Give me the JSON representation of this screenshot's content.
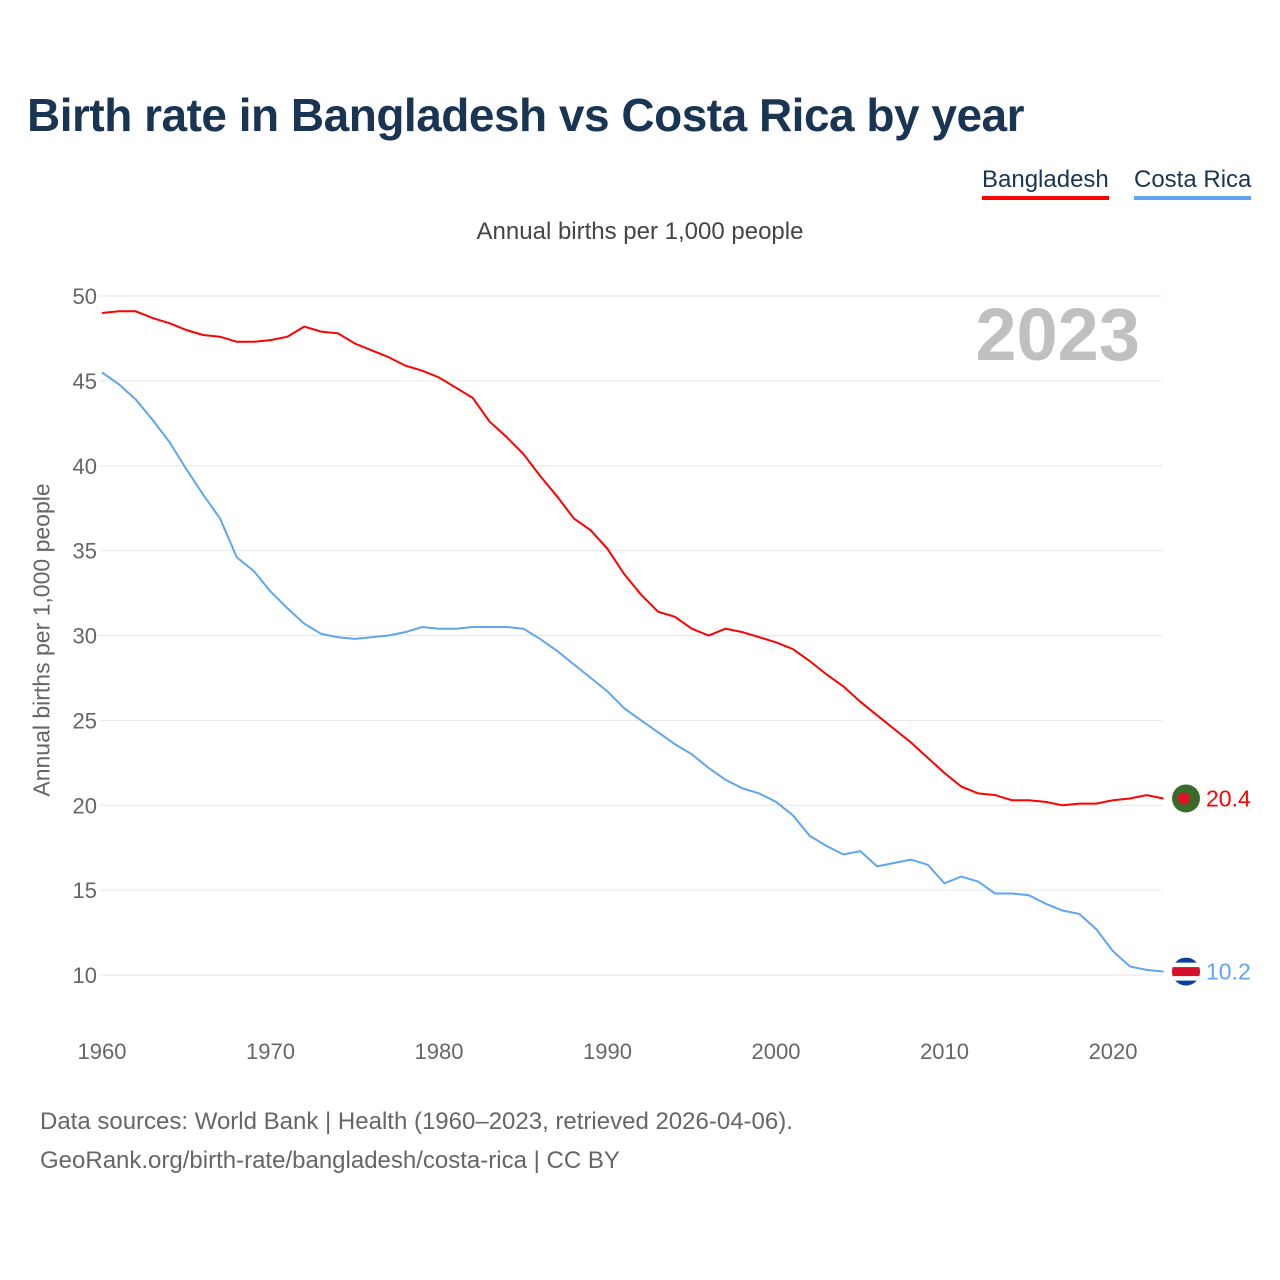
{
  "title": "Birth rate in Bangladesh vs Costa Rica by year",
  "subtitle": "Annual births per 1,000 people",
  "year_watermark": "2023",
  "footer": {
    "line1": "Data sources: World Bank | Health (1960–2023, retrieved 2026-04-06).",
    "line2": "GeoRank.org/birth-rate/bangladesh/costa-rica | CC BY"
  },
  "chart_data": {
    "type": "line",
    "title": "Birth rate in Bangladesh vs Costa Rica by year",
    "xlabel": "",
    "ylabel": "Annual births per 1,000 people",
    "xlim": [
      1960,
      2023
    ],
    "ylim": [
      10,
      50
    ],
    "x_ticks": [
      1960,
      1970,
      1980,
      1990,
      2000,
      2010,
      2020
    ],
    "y_ticks": [
      10,
      15,
      20,
      25,
      30,
      35,
      40,
      45,
      50
    ],
    "grid": true,
    "legend_placement": "top-right",
    "x": [
      1960,
      1961,
      1962,
      1963,
      1964,
      1965,
      1966,
      1967,
      1968,
      1969,
      1970,
      1971,
      1972,
      1973,
      1974,
      1975,
      1976,
      1977,
      1978,
      1979,
      1980,
      1981,
      1982,
      1983,
      1984,
      1985,
      1986,
      1987,
      1988,
      1989,
      1990,
      1991,
      1992,
      1993,
      1994,
      1995,
      1996,
      1997,
      1998,
      1999,
      2000,
      2001,
      2002,
      2003,
      2004,
      2005,
      2006,
      2007,
      2008,
      2009,
      2010,
      2011,
      2012,
      2013,
      2014,
      2015,
      2016,
      2017,
      2018,
      2019,
      2020,
      2021,
      2022,
      2023
    ],
    "series": [
      {
        "name": "Bangladesh",
        "color": "#ff0000",
        "last_label": "20.4",
        "values": [
          49.0,
          49.1,
          49.1,
          48.7,
          48.4,
          48.0,
          47.7,
          47.6,
          47.3,
          47.3,
          47.4,
          47.6,
          48.2,
          47.9,
          47.8,
          47.2,
          46.8,
          46.4,
          45.9,
          45.6,
          45.2,
          44.6,
          44.0,
          42.6,
          41.7,
          40.7,
          39.4,
          38.2,
          36.9,
          36.2,
          35.1,
          33.6,
          32.4,
          31.4,
          31.1,
          30.4,
          30.0,
          30.4,
          30.2,
          29.9,
          29.6,
          29.2,
          28.5,
          27.7,
          27.0,
          26.1,
          25.3,
          24.5,
          23.7,
          22.8,
          21.9,
          21.1,
          20.7,
          20.6,
          20.3,
          20.3,
          20.2,
          20.0,
          20.1,
          20.1,
          20.3,
          20.4,
          20.6,
          20.4
        ]
      },
      {
        "name": "Costa Rica",
        "color": "#5ea6ee",
        "last_label": "10.2",
        "values": [
          45.5,
          44.8,
          43.9,
          42.7,
          41.4,
          39.8,
          38.3,
          36.9,
          34.6,
          33.8,
          32.6,
          31.6,
          30.7,
          30.1,
          29.9,
          29.8,
          29.9,
          30.0,
          30.2,
          30.5,
          30.4,
          30.4,
          30.5,
          30.5,
          30.5,
          30.4,
          29.8,
          29.1,
          28.3,
          27.5,
          26.7,
          25.7,
          25.0,
          24.3,
          23.6,
          23.0,
          22.2,
          21.5,
          21.0,
          20.7,
          20.2,
          19.4,
          18.2,
          17.6,
          17.1,
          17.3,
          16.4,
          16.6,
          16.8,
          16.5,
          15.4,
          15.8,
          15.5,
          14.8,
          14.8,
          14.7,
          14.2,
          13.8,
          13.6,
          12.7,
          11.4,
          10.5,
          10.3,
          10.2
        ]
      }
    ]
  }
}
